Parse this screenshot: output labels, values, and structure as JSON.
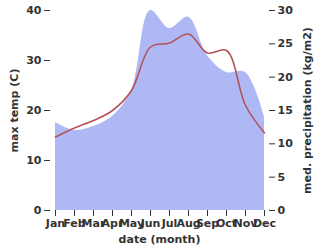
{
  "chart_data": {
    "type": "line",
    "x_label": "date (month)",
    "y_label": "max temp (C)",
    "y2_label": "med. precipitation (kg/m2)",
    "categories": [
      "Jan",
      "Feb",
      "Mar",
      "Apr",
      "May",
      "Jun",
      "Jul",
      "Aug",
      "Sep",
      "Oct",
      "Nov",
      "Dec"
    ],
    "series": [
      {
        "type": "area",
        "axis": "y2",
        "color": "#aeb8f5",
        "values": [
          13.2,
          12,
          12.6,
          14.1,
          18,
          30,
          27.3,
          29,
          23.2,
          20.7,
          20.7,
          14
        ]
      },
      {
        "type": "line",
        "axis": "y",
        "color": "#b5525a",
        "values": [
          14.7,
          16.5,
          18,
          20,
          24,
          32.7,
          33.5,
          35.3,
          31.5,
          32,
          21,
          15.5
        ]
      }
    ],
    "ylim": [
      0,
      40
    ],
    "yticks": [
      0,
      10,
      20,
      30,
      40
    ],
    "y2lim": [
      0,
      30
    ],
    "y2ticks": [
      0,
      5,
      10,
      15,
      20,
      25,
      30
    ],
    "grid": false
  }
}
